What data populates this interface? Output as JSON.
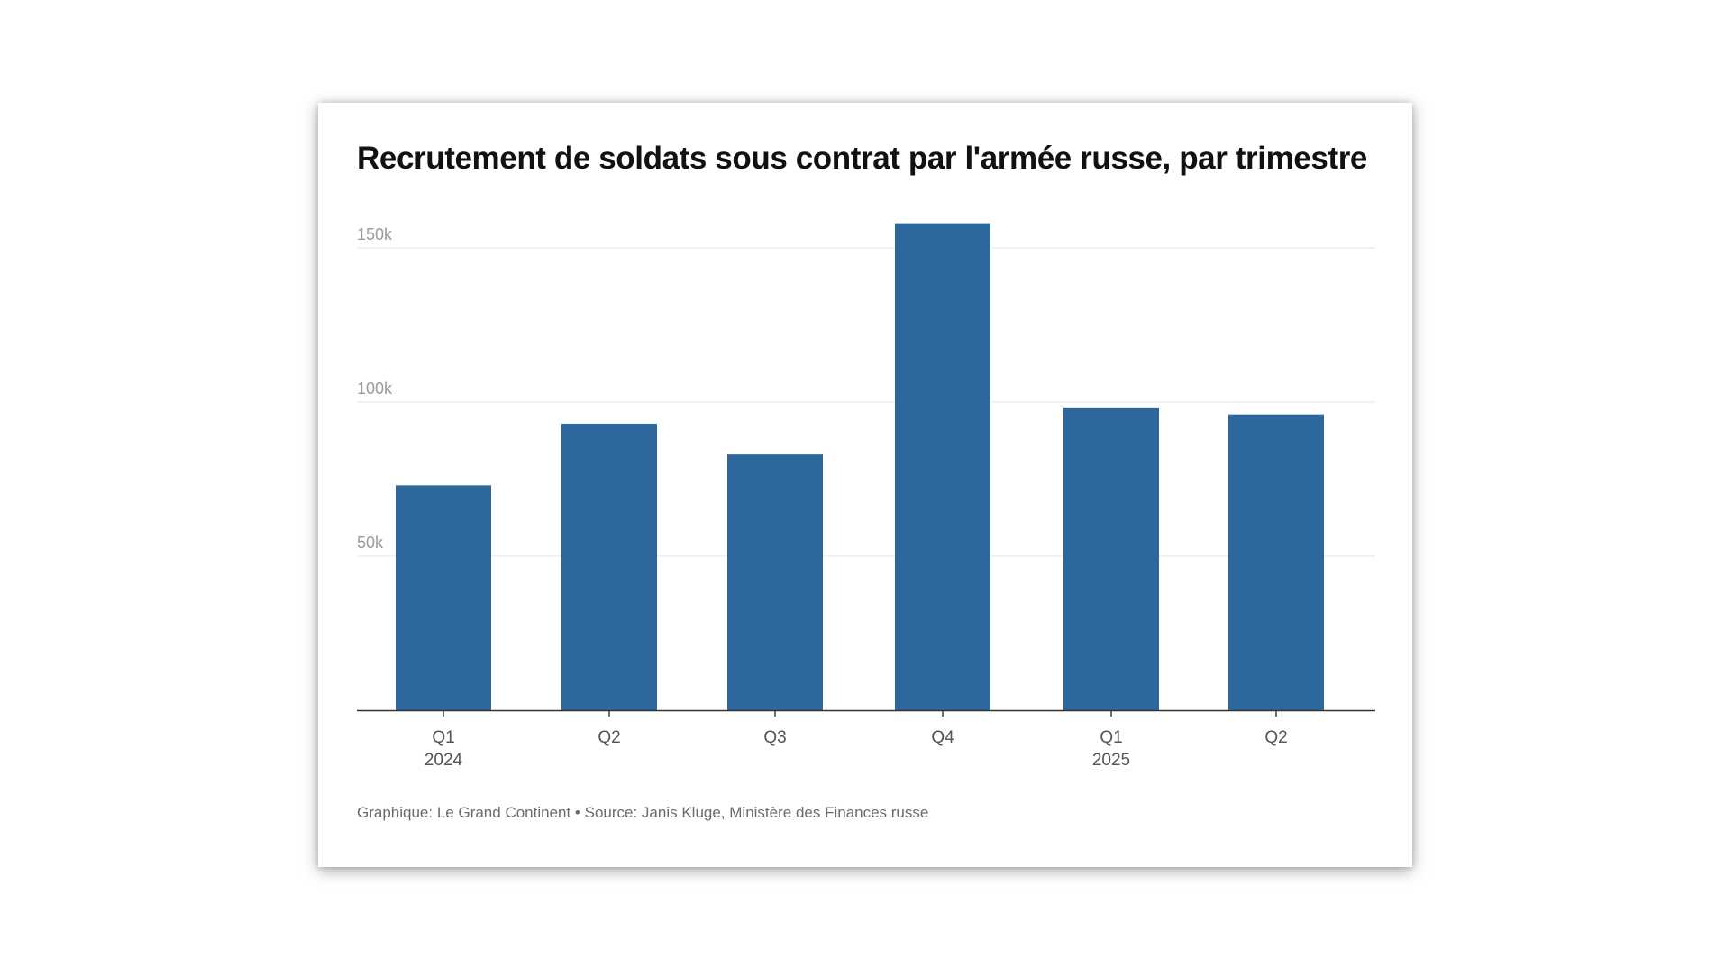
{
  "chart_data": {
    "type": "bar",
    "title": "Recrutement de soldats sous contrat par l'armée russe, par trimestre",
    "categories": [
      "Q1",
      "Q2",
      "Q3",
      "Q4",
      "Q1",
      "Q2"
    ],
    "category_groups": [
      "2024",
      "",
      "",
      "",
      "2025",
      ""
    ],
    "values": [
      73000,
      93000,
      83000,
      158000,
      98000,
      96000
    ],
    "y_ticks": [
      {
        "value": 50000,
        "label": "50k"
      },
      {
        "value": 100000,
        "label": "100k"
      },
      {
        "value": 150000,
        "label": "150k"
      }
    ],
    "ylim": [
      0,
      158000
    ],
    "grid": true,
    "bar_color": "#2e679c",
    "source": "Graphique: Le Grand Continent • Source: Janis Kluge, Ministère des Finances russe"
  }
}
